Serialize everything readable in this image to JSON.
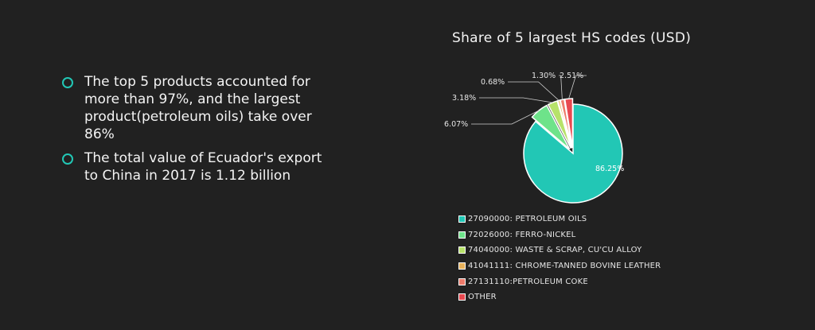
{
  "bullets": [
    "The top 5 products accounted for more than 97%, and the largest product(petroleum oils) take over 86%",
    "The total value of Ecuador's export to China in 2017 is 1.12 billion"
  ],
  "chart_data": {
    "type": "pie",
    "title": "Share of 5 largest HS codes (USD)",
    "slices": [
      {
        "label": "27090000: PETROLEUM OILS",
        "value": 86.25,
        "display": "86.25%",
        "color": "#22c7b5"
      },
      {
        "label": "72026000: FERRO-NICKEL",
        "value": 6.07,
        "display": "6.07%",
        "color": "#6ee38a"
      },
      {
        "label": "74040000: WASTE & SCRAP, CU'CU ALLOY",
        "value": 3.18,
        "display": "3.18%",
        "color": "#b7e26a"
      },
      {
        "label": "41041111: CHROME-TANNED BOVINE LEATHER",
        "value": 0.68,
        "display": "0.68%",
        "color": "#e7b15a"
      },
      {
        "label": "27131110:PETROLEUM COKE",
        "value": 1.3,
        "display": "1.30%",
        "color": "#ee7b6b"
      },
      {
        "label": "OTHER",
        "value": 2.51,
        "display": "2.51%",
        "color": "#e8484f"
      }
    ],
    "legend_position": "bottom"
  }
}
